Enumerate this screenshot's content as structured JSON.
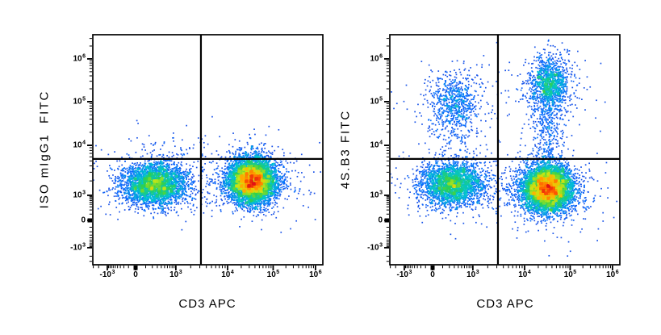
{
  "chart_data": {
    "type": "scatter",
    "subtype": "flow_cytometry_pseudocolor_density",
    "title": "",
    "grid": false,
    "legend": "none",
    "axes_scale": "logicle (asinh-compressed near zero, log decades above 10^3)",
    "colormap_stops": [
      [
        0.0,
        "#2a32cd"
      ],
      [
        0.22,
        "#0a6eff"
      ],
      [
        0.4,
        "#00c4d2"
      ],
      [
        0.55,
        "#2ed04e"
      ],
      [
        0.7,
        "#c8e614"
      ],
      [
        0.82,
        "#ffb400"
      ],
      [
        0.92,
        "#ff5a00"
      ],
      [
        1.0,
        "#e11414"
      ]
    ],
    "frame_color": "#000000",
    "background_color": "#ffffff",
    "plots": [
      {
        "y_label": "ISO mIgG1  FITC",
        "x_label": "CD3 APC",
        "x_ticks": [
          {
            "value": -1000,
            "base": "-10",
            "exp": "3",
            "frac": 0.063
          },
          {
            "value": 0,
            "base": "0",
            "exp": "",
            "frac": 0.186
          },
          {
            "value": 1000,
            "base": "10",
            "exp": "3",
            "frac": 0.361
          },
          {
            "value": 10000,
            "base": "10",
            "exp": "4",
            "frac": 0.586
          },
          {
            "value": 100000,
            "base": "10",
            "exp": "5",
            "frac": 0.784
          },
          {
            "value": 1000000,
            "base": "10",
            "exp": "6",
            "frac": 0.968
          }
        ],
        "y_ticks": [
          {
            "value": 1000000,
            "base": "10",
            "exp": "6",
            "frac": 0.105
          },
          {
            "value": 100000,
            "base": "10",
            "exp": "5",
            "frac": 0.291
          },
          {
            "value": 10000,
            "base": "10",
            "exp": "4",
            "frac": 0.481
          },
          {
            "value": 1000,
            "base": "10",
            "exp": "3",
            "frac": 0.698
          },
          {
            "value": 0,
            "base": "0",
            "exp": "",
            "frac": 0.807
          },
          {
            "value": -1000,
            "base": "-10",
            "exp": "3",
            "frac": 0.926
          }
        ],
        "quadrant_gate": {
          "x_value": 3400,
          "y_value": 5500,
          "x_frac": 0.47,
          "y_frac": 0.54
        },
        "populations": [
          {
            "name": "CD3-negative, isotype FITC-negative",
            "cx": 250,
            "cy": 1700,
            "sx": 0.07,
            "sy": 0.045,
            "n": 3200,
            "halo_n": 280
          },
          {
            "name": "CD3-positive, isotype FITC-negative",
            "cx": 34000,
            "cy": 2000,
            "sx": 0.052,
            "sy": 0.048,
            "n": 6000,
            "halo_n": 350
          },
          {
            "name": "isotype background upper-left",
            "cx": 500,
            "cy": 9000,
            "sx": 0.085,
            "sy": 0.05,
            "n": 38,
            "halo_n": 18
          },
          {
            "name": "isotype background upper-right",
            "cx": 30000,
            "cy": 7500,
            "sx": 0.05,
            "sy": 0.035,
            "n": 22,
            "halo_n": 10
          }
        ]
      },
      {
        "y_label": "4S.B3 FITC",
        "x_label": "CD3 APC",
        "x_ticks": [
          {
            "value": -1000,
            "base": "-10",
            "exp": "3",
            "frac": 0.063
          },
          {
            "value": 0,
            "base": "0",
            "exp": "",
            "frac": 0.186
          },
          {
            "value": 1000,
            "base": "10",
            "exp": "3",
            "frac": 0.361
          },
          {
            "value": 10000,
            "base": "10",
            "exp": "4",
            "frac": 0.586
          },
          {
            "value": 100000,
            "base": "10",
            "exp": "5",
            "frac": 0.784
          },
          {
            "value": 1000000,
            "base": "10",
            "exp": "6",
            "frac": 0.968
          }
        ],
        "y_ticks": [
          {
            "value": 1000000,
            "base": "10",
            "exp": "6",
            "frac": 0.105
          },
          {
            "value": 100000,
            "base": "10",
            "exp": "5",
            "frac": 0.291
          },
          {
            "value": 10000,
            "base": "10",
            "exp": "4",
            "frac": 0.481
          },
          {
            "value": 1000,
            "base": "10",
            "exp": "3",
            "frac": 0.698
          },
          {
            "value": 0,
            "base": "0",
            "exp": "",
            "frac": 0.807
          },
          {
            "value": -1000,
            "base": "-10",
            "exp": "3",
            "frac": 0.926
          }
        ],
        "quadrant_gate": {
          "x_value": 3400,
          "y_value": 5500,
          "x_frac": 0.47,
          "y_frac": 0.54
        },
        "populations": [
          {
            "name": "CD3- 4S.B3-FITC-negative",
            "cx": 250,
            "cy": 1700,
            "sx": 0.068,
            "sy": 0.047,
            "n": 2600,
            "halo_n": 260
          },
          {
            "name": "CD3+ 4S.B3-FITC-negative",
            "cx": 32000,
            "cy": 1400,
            "sx": 0.055,
            "sy": 0.05,
            "n": 5800,
            "halo_n": 400
          },
          {
            "name": "CD3- 4S.B3-FITC-positive",
            "cx": 300,
            "cy": 95000,
            "sx": 0.052,
            "sy": 0.066,
            "n": 640,
            "halo_n": 110
          },
          {
            "name": "CD3- FITC-positive tail",
            "cx": 320,
            "cy": 15000,
            "sx": 0.055,
            "sy": 0.07,
            "n": 90,
            "halo_n": 0
          },
          {
            "name": "CD3+ 4S.B3-FITC-bright",
            "cx": 36000,
            "cy": 250000,
            "sx": 0.042,
            "sy": 0.055,
            "n": 1050,
            "halo_n": 120
          },
          {
            "name": "CD3+ FITC intermediate column",
            "cx": 32000,
            "cy": 30000,
            "sx": 0.035,
            "sy": 0.16,
            "n": 520,
            "halo_n": 60
          }
        ]
      }
    ]
  }
}
